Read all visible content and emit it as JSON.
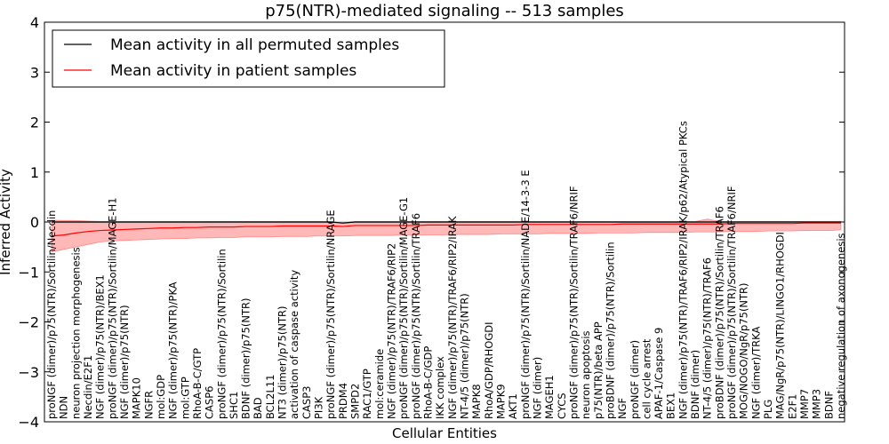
{
  "chart_data": {
    "type": "line",
    "title": "p75(NTR)-mediated signaling -- 513 samples",
    "xlabel": "Cellular Entities",
    "ylabel": "Inferred Activity",
    "ylim": [
      -4,
      4
    ],
    "yticks": [
      "4",
      "3",
      "2",
      "1",
      "0",
      "−1",
      "−2",
      "−3",
      "−4"
    ],
    "grid": false,
    "legend_position": "top-left",
    "series": [
      {
        "name": "Mean activity in all permuted samples",
        "color": "#000000",
        "values": [
          0.0,
          0.0,
          0.0,
          0.0,
          0.0,
          0.0,
          0.0,
          0.0,
          0.0,
          0.0,
          0.0,
          0.0,
          0.0,
          0.0,
          0.0,
          0.0,
          0.0,
          0.0,
          0.0,
          0.0,
          0.0,
          0.0,
          0.0,
          0.0,
          -0.02,
          0.0,
          0.0,
          0.0,
          0.0,
          0.0,
          0.0,
          0.0,
          0.0,
          0.0,
          0.0,
          0.0,
          0.0,
          0.0,
          0.0,
          0.0,
          0.0,
          0.0,
          0.0,
          0.0,
          0.0,
          0.0,
          0.0,
          0.0,
          0.0,
          0.0,
          0.0,
          0.0,
          0.0,
          0.0,
          0.0,
          0.0,
          0.0,
          0.0,
          0.0,
          0.0,
          0.0,
          0.0,
          0.0,
          0.0,
          0.0,
          0.0
        ]
      },
      {
        "name": "Mean activity in patient samples",
        "color": "#ff0000",
        "values": [
          -0.28,
          -0.26,
          -0.22,
          -0.19,
          -0.17,
          -0.16,
          -0.15,
          -0.14,
          -0.13,
          -0.12,
          -0.12,
          -0.11,
          -0.11,
          -0.1,
          -0.1,
          -0.1,
          -0.09,
          -0.09,
          -0.09,
          -0.08,
          -0.08,
          -0.08,
          -0.08,
          -0.08,
          -0.09,
          -0.07,
          -0.07,
          -0.07,
          -0.07,
          -0.07,
          -0.07,
          -0.06,
          -0.06,
          -0.06,
          -0.06,
          -0.06,
          -0.06,
          -0.06,
          -0.06,
          -0.05,
          -0.05,
          -0.05,
          -0.05,
          -0.05,
          -0.05,
          -0.05,
          -0.05,
          -0.04,
          -0.04,
          -0.04,
          -0.04,
          -0.04,
          -0.04,
          -0.04,
          -0.04,
          -0.04,
          -0.03,
          -0.03,
          -0.03,
          -0.03,
          -0.03,
          -0.03,
          -0.02,
          -0.02,
          -0.02,
          -0.02
        ],
        "band_upper": [
          0.04,
          0.03,
          0.03,
          0.02,
          0.01,
          0.01,
          0.01,
          0.01,
          0.01,
          0.01,
          0.01,
          0.01,
          0.01,
          0.01,
          0.01,
          0.01,
          0.01,
          0.01,
          0.01,
          0.01,
          0.01,
          0.01,
          0.01,
          0.01,
          -0.03,
          0.01,
          0.01,
          0.01,
          0.01,
          0.01,
          0.01,
          0.01,
          0.01,
          0.01,
          0.01,
          0.01,
          0.01,
          0.01,
          0.01,
          0.01,
          0.01,
          0.01,
          0.01,
          0.01,
          0.01,
          0.01,
          0.01,
          0.01,
          0.01,
          0.01,
          0.01,
          0.01,
          0.01,
          0.01,
          0.06,
          0.01,
          0.01,
          0.01,
          0.01,
          0.01,
          0.01,
          0.01,
          0.01,
          0.01,
          0.01,
          0.01
        ],
        "band_lower": [
          -0.6,
          -0.55,
          -0.5,
          -0.45,
          -0.4,
          -0.38,
          -0.37,
          -0.36,
          -0.35,
          -0.34,
          -0.33,
          -0.33,
          -0.32,
          -0.32,
          -0.31,
          -0.31,
          -0.3,
          -0.3,
          -0.3,
          -0.29,
          -0.29,
          -0.29,
          -0.28,
          -0.28,
          -0.28,
          -0.27,
          -0.27,
          -0.27,
          -0.27,
          -0.26,
          -0.26,
          -0.26,
          -0.26,
          -0.25,
          -0.25,
          -0.25,
          -0.25,
          -0.24,
          -0.24,
          -0.24,
          -0.24,
          -0.23,
          -0.23,
          -0.23,
          -0.23,
          -0.22,
          -0.22,
          -0.22,
          -0.22,
          -0.21,
          -0.21,
          -0.21,
          -0.21,
          -0.2,
          -0.2,
          -0.2,
          -0.19,
          -0.19,
          -0.19,
          -0.18,
          -0.18,
          -0.18,
          -0.17,
          -0.17,
          -0.17,
          -0.16
        ]
      }
    ],
    "permuted_band_upper": 0.02,
    "permuted_band_lower": -0.02,
    "categories": [
      "proNGF (dimer)/p75(NTR)/Sortilin/Necdin",
      "NDN",
      "neuron projection morphogenesis",
      "Necdin/E2F1",
      "NGF (dimer)/p75(NTR)/BEX1",
      "proNGF (dimer)/p75(NTR)/Sortilin/MAGE-H1",
      "NGF (dimer)/p75(NTR)",
      "MAPK10",
      "NGFR",
      "mol:GDP",
      "NGF (dimer)/p75(NTR)/PKA",
      "mol:GTP",
      "RhoA-B-C/GTP",
      "CASP6",
      "proNGF (dimer)/p75(NTR)/Sortilin",
      "SHC1",
      "BDNF (dimer)/p75(NTR)",
      "BAD",
      "BCL2L11",
      "NT3 (dimer)/p75(NTR)",
      "activation of caspase activity",
      "CASP3",
      "PI3K",
      "proNGF (dimer)/p75(NTR)/Sortilin/NRAGE",
      "PRDM4",
      "SMPD2",
      "RAC1/GTP",
      "mol:ceramide",
      "NGF (dimer)/p75(NTR)/TRAF6/RIP2",
      "proNGF (dimer)/p75(NTR)/Sortilin/MAGE-G1",
      "proNGF (dimer)/p75(NTR)/Sortilin/TRAF6",
      "RhoA-B-C/GDP",
      "IKK complex",
      "NGF (dimer)/p75(NTR)/TRAF6/RIP2/IRAK",
      "NT-4/5 (dimer)/p75(NTR)",
      "MAPK8",
      "RhoA/GDP/RHOGDI",
      "MAPK9",
      "AKT1",
      "proNGF (dimer)/p75(NTR)/Sortilin/NADE/14-3-3 E",
      "NGF (dimer)",
      "MAGEH1",
      "CYCS",
      "proNGF (dimer)/p75(NTR)/Sortilin/TRAF6/NRIF",
      "neuron apoptosis",
      "p75(NTR)/beta APP",
      "proBDNF (dimer)/p75(NTR)/Sortilin",
      "NGF",
      "proNGF (dimer)",
      "cell cycle arrest",
      "APAF-1/Caspase 9",
      "BEX1",
      "NGF (dimer)/p75(NTR)/TRAF6/RIP2/IRAK/p62/Atypical PKCs",
      "BDNF (dimer)",
      "NT-4/5 (dimer)/p75(NTR)/TRAF6",
      "proBDNF (dimer)/p75(NTR)/Sortilin/TRAF6",
      "proNGF (dimer)/p75(NTR)/Sortilin/TRAF6/NRIF",
      "MOG/NOGO/NgR/p75(NTR)",
      "NGF (dimer)/TRKA",
      "PLG",
      "MAG/NgR/p75(NTR)/LINGO1/RHOGDI",
      "E2F1",
      "MMP7",
      "MMP3",
      "BDNF",
      "negative regulation of axonogenesis"
    ]
  }
}
